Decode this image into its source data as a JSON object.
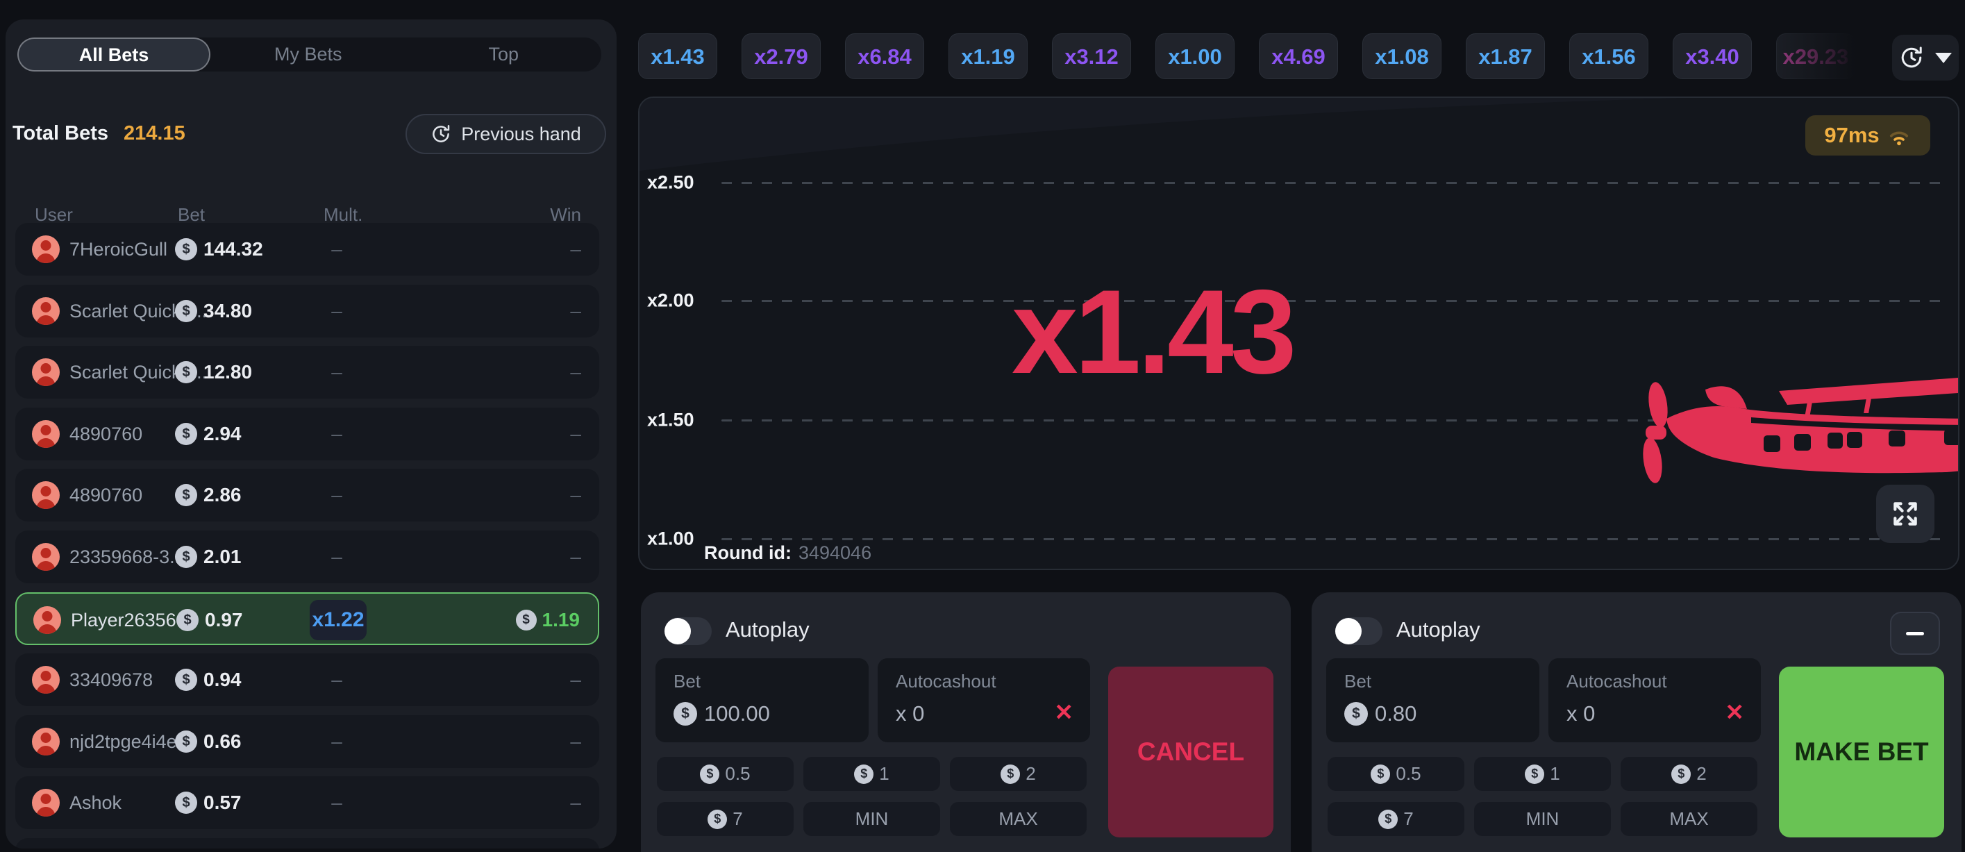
{
  "sidebar": {
    "tabs": [
      {
        "label": "All Bets",
        "active": true
      },
      {
        "label": "My Bets",
        "active": false
      },
      {
        "label": "Top",
        "active": false
      }
    ],
    "total_bets": {
      "label": "Total Bets",
      "value": "214.15"
    },
    "previous_hand_label": "Previous hand",
    "table": {
      "headers": [
        "User",
        "Bet",
        "Mult.",
        "Win"
      ],
      "rows": [
        {
          "user": "7HeroicGull",
          "bet": "144.32",
          "mult": "–",
          "win": "–"
        },
        {
          "user": "Scarlet Quicke...",
          "bet": "34.80",
          "mult": "–",
          "win": "–"
        },
        {
          "user": "Scarlet Quicke...",
          "bet": "12.80",
          "mult": "–",
          "win": "–"
        },
        {
          "user": "4890760",
          "bet": "2.94",
          "mult": "–",
          "win": "–"
        },
        {
          "user": "4890760",
          "bet": "2.86",
          "mult": "–",
          "win": "–"
        },
        {
          "user": "23359668-3...",
          "bet": "2.01",
          "mult": "–",
          "win": "–"
        },
        {
          "user": "Player26356...",
          "bet": "0.97",
          "mult": "x1.22",
          "win": "1.19",
          "highlighted": true
        },
        {
          "user": "33409678",
          "bet": "0.94",
          "mult": "–",
          "win": "–"
        },
        {
          "user": "njd2tpge4i4ea",
          "bet": "0.66",
          "mult": "–",
          "win": "–"
        },
        {
          "user": "Ashok",
          "bet": "0.57",
          "mult": "–",
          "win": "–"
        }
      ]
    }
  },
  "history_badges": [
    {
      "value": "x1.43",
      "color": "#53a8f4"
    },
    {
      "value": "x2.79",
      "color": "#8d55f2"
    },
    {
      "value": "x6.84",
      "color": "#8d55f2"
    },
    {
      "value": "x1.19",
      "color": "#53a8f4"
    },
    {
      "value": "x3.12",
      "color": "#8d55f2"
    },
    {
      "value": "x1.00",
      "color": "#53a8f4"
    },
    {
      "value": "x4.69",
      "color": "#8d55f2"
    },
    {
      "value": "x1.08",
      "color": "#53a8f4"
    },
    {
      "value": "x1.87",
      "color": "#53a8f4"
    },
    {
      "value": "x1.56",
      "color": "#53a8f4"
    },
    {
      "value": "x3.40",
      "color": "#8d55f2"
    },
    {
      "value": "x29.23",
      "color": "#c64aa5",
      "faded": true
    }
  ],
  "game": {
    "ping": "97ms",
    "current_multiplier": "x1.43",
    "y_axis_labels": [
      "x2.50",
      "x2.00",
      "x1.50",
      "x1.00"
    ],
    "round_id_label": "Round id:",
    "round_id_value": "3494046"
  },
  "bet_panels": [
    {
      "autoplay_label": "Autoplay",
      "bet_label": "Bet",
      "bet_value": "100.00",
      "autocashout_label": "Autocashout",
      "autocashout_value": "x 0",
      "quick_bets": [
        "0.5",
        "1",
        "2",
        "7"
      ],
      "min_label": "MIN",
      "max_label": "MAX",
      "action_label": "CANCEL",
      "action_style": "cancel",
      "has_collapse_button": false
    },
    {
      "autoplay_label": "Autoplay",
      "bet_label": "Bet",
      "bet_value": "0.80",
      "autocashout_label": "Autocashout",
      "autocashout_value": "x 0",
      "quick_bets": [
        "0.5",
        "1",
        "2",
        "7"
      ],
      "min_label": "MIN",
      "max_label": "MAX",
      "action_label": "MAKE BET",
      "action_style": "make",
      "has_collapse_button": true
    }
  ],
  "colors": {
    "accent_red": "#e23153",
    "accent_green": "#69c354",
    "accent_blue": "#53a8f4",
    "accent_purple": "#8d55f2",
    "accent_pink": "#c64aa5",
    "accent_orange": "#eca93f",
    "highlight_row_border": "#64bf6a"
  }
}
